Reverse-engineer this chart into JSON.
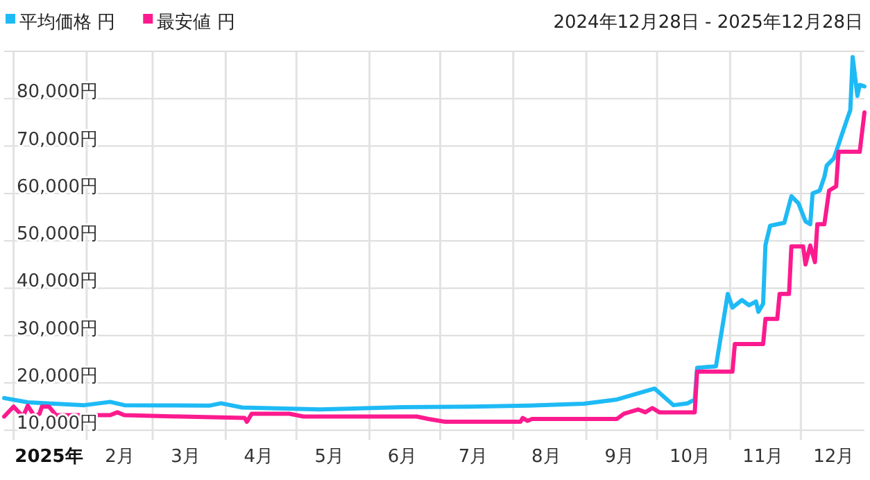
{
  "chart_data": {
    "type": "line",
    "title": "2024年12月28日 - 2025年12月28日",
    "legend": "top left",
    "grid": true,
    "xlim": [
      "2024-12-28",
      "2025-12-28"
    ],
    "xticks": [
      {
        "value": "2025-01-01",
        "label": null
      },
      {
        "value": "2025-02-01",
        "label": null
      },
      {
        "value": "2025-03-01",
        "label": null
      },
      {
        "value": "2025-04-01",
        "label": null
      },
      {
        "value": "2025-05-01",
        "label": null
      },
      {
        "value": "2025-06-01",
        "label": null
      },
      {
        "value": "2025-07-01",
        "label": null
      },
      {
        "value": "2025-08-01",
        "label": null
      },
      {
        "value": "2025-09-01",
        "label": null
      },
      {
        "value": "2025-10-01",
        "label": null
      },
      {
        "value": "2025-11-01",
        "label": null
      },
      {
        "value": "2025-12-01",
        "label": null
      },
      {
        "value": "2025-01-16",
        "label": "2025年"
      },
      {
        "value": "2025-02-15",
        "label": "2月"
      },
      {
        "value": "2025-03-15",
        "label": "3月"
      },
      {
        "value": "2025-04-15",
        "label": "4月"
      },
      {
        "value": "2025-05-15",
        "label": "5月"
      },
      {
        "value": "2025-06-15",
        "label": "6月"
      },
      {
        "value": "2025-07-15",
        "label": "7月"
      },
      {
        "value": "2025-08-15",
        "label": "8月"
      },
      {
        "value": "2025-09-15",
        "label": "9月"
      },
      {
        "value": "2025-10-15",
        "label": "10月"
      },
      {
        "value": "2025-11-15",
        "label": "11月"
      },
      {
        "value": "2025-12-15",
        "label": "12月"
      }
    ],
    "ylim": [
      8000,
      90000
    ],
    "yticks": [
      {
        "value": 10000,
        "label": "10,000円"
      },
      {
        "value": 20000,
        "label": "20,000円"
      },
      {
        "value": 30000,
        "label": "30,000円"
      },
      {
        "value": 40000,
        "label": "40,000円"
      },
      {
        "value": 50000,
        "label": "50,000円"
      },
      {
        "value": 60000,
        "label": "60,000円"
      },
      {
        "value": 70000,
        "label": "70,000円"
      },
      {
        "value": 80000,
        "label": "80,000円"
      },
      {
        "value": 90000,
        "label": null
      }
    ],
    "series": [
      {
        "name": "平均価格 円",
        "color": "#1ebaf5",
        "x": [
          "2024-12-28",
          "2025-01-07",
          "2025-01-31",
          "2025-02-11",
          "2025-02-17",
          "2025-03-25",
          "2025-03-30",
          "2025-04-08",
          "2025-05-11",
          "2025-06-15",
          "2025-07-14",
          "2025-08-07",
          "2025-08-31",
          "2025-09-14",
          "2025-09-30",
          "2025-10-08",
          "2025-10-14",
          "2025-10-17",
          "2025-10-18",
          "2025-10-26",
          "2025-10-31",
          "2025-11-02",
          "2025-11-06",
          "2025-11-09",
          "2025-11-12",
          "2025-11-13",
          "2025-11-15",
          "2025-11-16",
          "2025-11-18",
          "2025-11-24",
          "2025-11-27",
          "2025-11-30",
          "2025-12-03",
          "2025-12-05",
          "2025-12-06",
          "2025-12-09",
          "2025-12-11",
          "2025-12-12",
          "2025-12-15",
          "2025-12-16",
          "2025-12-18",
          "2025-12-21",
          "2025-12-22",
          "2025-12-23",
          "2025-12-25",
          "2025-12-26",
          "2025-12-28"
        ],
        "values": [
          16800,
          15900,
          15300,
          16000,
          15300,
          15200,
          15700,
          14800,
          14400,
          14900,
          15000,
          15200,
          15600,
          16500,
          18800,
          15300,
          15700,
          16500,
          23200,
          23500,
          38800,
          35900,
          37500,
          36400,
          37200,
          35000,
          36700,
          49100,
          53200,
          53800,
          59400,
          57900,
          54100,
          53500,
          60000,
          60600,
          63500,
          65900,
          67400,
          68800,
          71800,
          76200,
          77600,
          88800,
          80600,
          82900,
          82600
        ]
      },
      {
        "name": "最安値 円",
        "color": "#fc1a8e",
        "x": [
          "2024-12-28",
          "2025-01-01",
          "2025-01-05",
          "2025-01-07",
          "2025-01-10",
          "2025-01-12",
          "2025-01-13",
          "2025-01-16",
          "2025-01-19",
          "2025-02-11",
          "2025-02-14",
          "2025-02-17",
          "2025-03-13",
          "2025-04-09",
          "2025-04-10",
          "2025-04-12",
          "2025-04-28",
          "2025-05-04",
          "2025-06-21",
          "2025-06-26",
          "2025-07-03",
          "2025-08-04",
          "2025-08-05",
          "2025-08-07",
          "2025-08-09",
          "2025-09-14",
          "2025-09-17",
          "2025-09-23",
          "2025-09-26",
          "2025-09-29",
          "2025-10-02",
          "2025-10-17",
          "2025-10-18",
          "2025-11-02",
          "2025-11-03",
          "2025-11-15",
          "2025-11-16",
          "2025-11-21",
          "2025-11-22",
          "2025-11-26",
          "2025-11-27",
          "2025-12-02",
          "2025-12-03",
          "2025-12-05",
          "2025-12-07",
          "2025-12-08",
          "2025-12-11",
          "2025-12-13",
          "2025-12-16",
          "2025-12-17",
          "2025-12-26",
          "2025-12-28"
        ],
        "values": [
          12900,
          15000,
          12900,
          15200,
          12900,
          13500,
          15000,
          15000,
          13200,
          13200,
          13800,
          13200,
          12900,
          12600,
          11800,
          13500,
          13500,
          12900,
          12900,
          12400,
          11800,
          11800,
          12600,
          12000,
          12400,
          12400,
          13500,
          14400,
          13800,
          14700,
          13800,
          13800,
          22400,
          22400,
          28200,
          28200,
          33500,
          33500,
          38800,
          38800,
          48800,
          48800,
          45000,
          49000,
          45500,
          53500,
          53500,
          60600,
          61500,
          68800,
          68800,
          77100
        ]
      }
    ]
  }
}
